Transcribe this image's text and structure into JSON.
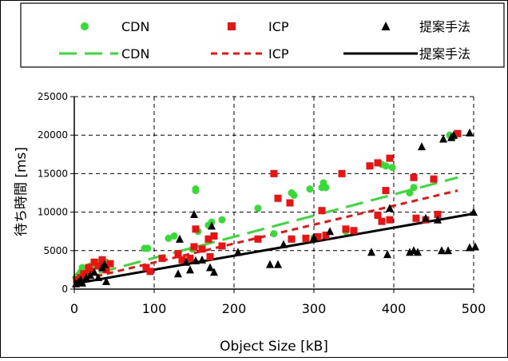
{
  "chart_data": {
    "type": "scatter",
    "title": "",
    "xlabel": "Object Size [kB]",
    "ylabel": "待ち時間 [ms]",
    "xlim": [
      0,
      500
    ],
    "ylim": [
      0,
      25000
    ],
    "x_ticks": [
      0,
      100,
      200,
      300,
      400,
      500
    ],
    "y_ticks": [
      0,
      5000,
      10000,
      15000,
      20000,
      25000
    ],
    "grid": true,
    "legend_position": "top",
    "colors": {
      "cdn": "#33dd33",
      "icp": "#ee1111",
      "proposed": "#000000"
    },
    "series": [
      {
        "name": "CDN",
        "marker": "circle",
        "points": [
          [
            2,
            1500
          ],
          [
            5,
            1800
          ],
          [
            8,
            2200
          ],
          [
            10,
            2800
          ],
          [
            15,
            2500
          ],
          [
            20,
            3000
          ],
          [
            25,
            3200
          ],
          [
            30,
            3500
          ],
          [
            35,
            3000
          ],
          [
            40,
            3500
          ],
          [
            88,
            5300
          ],
          [
            92,
            5300
          ],
          [
            118,
            6600
          ],
          [
            125,
            6900
          ],
          [
            148,
            5200
          ],
          [
            152,
            12800
          ],
          [
            152,
            13000
          ],
          [
            155,
            7500
          ],
          [
            168,
            8300
          ],
          [
            172,
            8700
          ],
          [
            185,
            9000
          ],
          [
            230,
            10500
          ],
          [
            250,
            7200
          ],
          [
            272,
            12500
          ],
          [
            275,
            12200
          ],
          [
            295,
            13000
          ],
          [
            300,
            6700
          ],
          [
            310,
            13200
          ],
          [
            312,
            13800
          ],
          [
            315,
            13200
          ],
          [
            340,
            7500
          ],
          [
            385,
            16200
          ],
          [
            390,
            16000
          ],
          [
            398,
            15800
          ],
          [
            420,
            12500
          ],
          [
            425,
            13200
          ],
          [
            470,
            20000
          ],
          [
            475,
            19800
          ]
        ]
      },
      {
        "name": "ICP",
        "marker": "square",
        "points": [
          [
            3,
            1200
          ],
          [
            8,
            1500
          ],
          [
            12,
            2000
          ],
          [
            18,
            2800
          ],
          [
            20,
            2300
          ],
          [
            25,
            3500
          ],
          [
            30,
            3000
          ],
          [
            35,
            3800
          ],
          [
            40,
            2500
          ],
          [
            45,
            3300
          ],
          [
            90,
            2800
          ],
          [
            95,
            2300
          ],
          [
            110,
            4000
          ],
          [
            130,
            4600
          ],
          [
            135,
            3800
          ],
          [
            145,
            4000
          ],
          [
            150,
            5500
          ],
          [
            152,
            7800
          ],
          [
            160,
            5200
          ],
          [
            168,
            6500
          ],
          [
            170,
            4200
          ],
          [
            175,
            6900
          ],
          [
            185,
            5600
          ],
          [
            230,
            6500
          ],
          [
            250,
            15000
          ],
          [
            255,
            11800
          ],
          [
            270,
            11200
          ],
          [
            272,
            6500
          ],
          [
            290,
            6600
          ],
          [
            305,
            6800
          ],
          [
            310,
            10200
          ],
          [
            315,
            7000
          ],
          [
            335,
            15000
          ],
          [
            340,
            7800
          ],
          [
            350,
            7600
          ],
          [
            370,
            16000
          ],
          [
            380,
            16400
          ],
          [
            385,
            8800
          ],
          [
            390,
            12800
          ],
          [
            395,
            17000
          ],
          [
            380,
            9600
          ],
          [
            395,
            9000
          ],
          [
            425,
            14500
          ],
          [
            428,
            9200
          ],
          [
            440,
            9000
          ],
          [
            450,
            14300
          ],
          [
            455,
            9700
          ],
          [
            480,
            20200
          ]
        ]
      },
      {
        "name": "提案手法",
        "marker": "triangle",
        "points": [
          [
            2,
            700
          ],
          [
            5,
            900
          ],
          [
            8,
            1200
          ],
          [
            10,
            800
          ],
          [
            15,
            1500
          ],
          [
            20,
            1800
          ],
          [
            25,
            2200
          ],
          [
            30,
            1500
          ],
          [
            35,
            2800
          ],
          [
            38,
            3200
          ],
          [
            40,
            1000
          ],
          [
            130,
            2000
          ],
          [
            132,
            6500
          ],
          [
            140,
            3500
          ],
          [
            145,
            2500
          ],
          [
            150,
            9700
          ],
          [
            152,
            3700
          ],
          [
            160,
            3800
          ],
          [
            170,
            2800
          ],
          [
            172,
            8200
          ],
          [
            175,
            2200
          ],
          [
            205,
            4800
          ],
          [
            245,
            3200
          ],
          [
            255,
            3200
          ],
          [
            262,
            5800
          ],
          [
            300,
            6700
          ],
          [
            320,
            7500
          ],
          [
            372,
            4800
          ],
          [
            392,
            4500
          ],
          [
            395,
            10500
          ],
          [
            420,
            4800
          ],
          [
            425,
            5000
          ],
          [
            430,
            4800
          ],
          [
            435,
            18500
          ],
          [
            440,
            9200
          ],
          [
            455,
            9000
          ],
          [
            460,
            5000
          ],
          [
            462,
            19500
          ],
          [
            468,
            5000
          ],
          [
            472,
            19700
          ],
          [
            475,
            20000
          ],
          [
            495,
            20300
          ],
          [
            495,
            5400
          ],
          [
            500,
            10000
          ],
          [
            502,
            5500
          ]
        ]
      }
    ],
    "trendlines": [
      {
        "name": "CDN",
        "style": "long-dash",
        "x": [
          0,
          480
        ],
        "y": [
          1300,
          14500
        ]
      },
      {
        "name": "ICP",
        "style": "short-dash",
        "x": [
          0,
          480
        ],
        "y": [
          1000,
          12800
        ]
      },
      {
        "name": "提案手法",
        "style": "solid",
        "x": [
          0,
          500
        ],
        "y": [
          700,
          9800
        ]
      }
    ]
  }
}
